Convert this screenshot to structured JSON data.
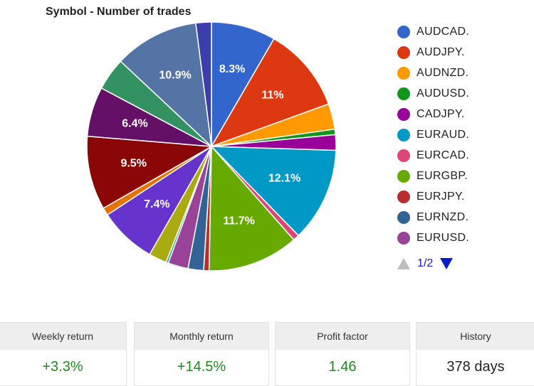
{
  "chart_data": {
    "type": "pie",
    "title": "Symbol - Number of trades",
    "slices": [
      {
        "name": "AUDCAD.",
        "value": 8.3,
        "label": "8.3%",
        "color": "#3366cc"
      },
      {
        "name": "AUDJPY.",
        "value": 11.0,
        "label": "11%",
        "color": "#dc3912"
      },
      {
        "name": "AUDNZD.",
        "value": 3.3,
        "label": "",
        "color": "#ff9900"
      },
      {
        "name": "AUDUSD.",
        "value": 0.7,
        "label": "",
        "color": "#109618"
      },
      {
        "name": "CADJPY.",
        "value": 2.0,
        "label": "",
        "color": "#990099"
      },
      {
        "name": "EURAUD.",
        "value": 12.1,
        "label": "12.1%",
        "color": "#0099c6"
      },
      {
        "name": "EURCAD.",
        "value": 0.8,
        "label": "",
        "color": "#dd4477"
      },
      {
        "name": "EURGBP.",
        "value": 11.7,
        "label": "11.7%",
        "color": "#66aa00"
      },
      {
        "name": "EURJPY.",
        "value": 0.7,
        "label": "",
        "color": "#b82e2e"
      },
      {
        "name": "EURNZD.",
        "value": 2.0,
        "label": "",
        "color": "#316395"
      },
      {
        "name": "EURUSD.",
        "value": 2.6,
        "label": "",
        "color": "#994499"
      },
      {
        "name": "",
        "value": 0.3,
        "label": "",
        "color": "#22aa99"
      },
      {
        "name": "",
        "value": 2.3,
        "label": "",
        "color": "#aaaa11"
      },
      {
        "name": "",
        "value": 7.4,
        "label": "7.4%",
        "color": "#6633cc"
      },
      {
        "name": "",
        "value": 1.0,
        "label": "",
        "color": "#e67300"
      },
      {
        "name": "",
        "value": 9.5,
        "label": "9.5%",
        "color": "#8b0707"
      },
      {
        "name": "",
        "value": 6.4,
        "label": "6.4%",
        "color": "#651067"
      },
      {
        "name": "",
        "value": 4.2,
        "label": "",
        "color": "#329262"
      },
      {
        "name": "",
        "value": 10.9,
        "label": "10.9%",
        "color": "#5574a6"
      },
      {
        "name": "",
        "value": 2.0,
        "label": "",
        "color": "#3b3eac"
      }
    ],
    "legend_placement": "right"
  },
  "legend": {
    "items": [
      {
        "label": "AUDCAD.",
        "color": "#3366cc"
      },
      {
        "label": "AUDJPY.",
        "color": "#dc3912"
      },
      {
        "label": "AUDNZD.",
        "color": "#ff9900"
      },
      {
        "label": "AUDUSD.",
        "color": "#109618"
      },
      {
        "label": "CADJPY.",
        "color": "#990099"
      },
      {
        "label": "EURAUD.",
        "color": "#0099c6"
      },
      {
        "label": "EURCAD.",
        "color": "#dd4477"
      },
      {
        "label": "EURGBP.",
        "color": "#66aa00"
      },
      {
        "label": "EURJPY.",
        "color": "#b82e2e"
      },
      {
        "label": "EURNZD.",
        "color": "#316395"
      },
      {
        "label": "EURUSD.",
        "color": "#994499"
      }
    ],
    "pager": {
      "text": "1/2",
      "prev_icon": "triangle-up-icon",
      "next_icon": "triangle-down-icon"
    }
  },
  "stats": [
    {
      "title": "Weekly return",
      "value": "+3.3%",
      "value_color": "#1e8a1e"
    },
    {
      "title": "Monthly return",
      "value": "+14.5%",
      "value_color": "#1e8a1e"
    },
    {
      "title": "Profit factor",
      "value": "1.46",
      "value_color": "#1e8a1e"
    },
    {
      "title": "History",
      "value": "378 days",
      "value_color": "#222222"
    }
  ]
}
